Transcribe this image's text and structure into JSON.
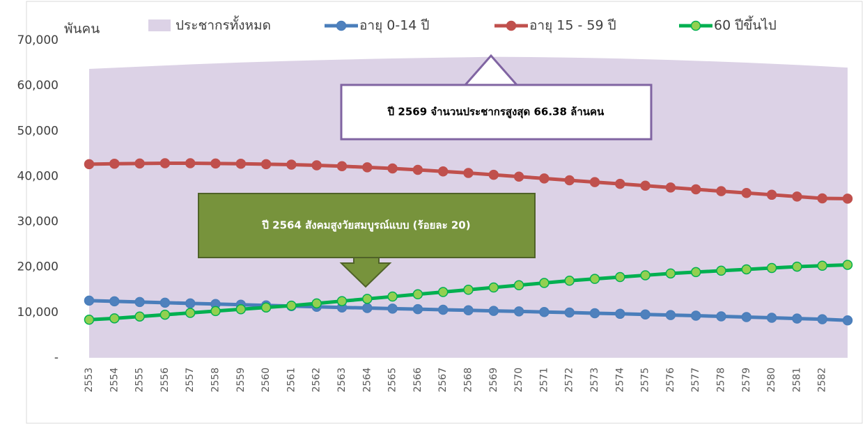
{
  "chart_data": {
    "type": "line",
    "y_unit": "พันคน",
    "categories": [
      "2553",
      "2554",
      "2555",
      "2556",
      "2557",
      "2558",
      "2559",
      "2560",
      "2561",
      "2562",
      "2563",
      "2564",
      "2565",
      "2566",
      "2567",
      "2568",
      "2569",
      "2570",
      "2571",
      "2572",
      "2573",
      "2574",
      "2575",
      "2576",
      "2577",
      "2578",
      "2579",
      "2580",
      "2581",
      "2582",
      null
    ],
    "series": [
      {
        "name": "ประชากรทั้งหมด",
        "type": "area",
        "color": "#dcd2e6",
        "values": [
          63700,
          63950,
          64200,
          64450,
          64700,
          64920,
          65120,
          65300,
          65470,
          65620,
          65760,
          65890,
          66000,
          66100,
          66200,
          66280,
          66380,
          66340,
          66280,
          66200,
          66100,
          65980,
          65840,
          65680,
          65500,
          65300,
          65080,
          64840,
          64580,
          64300,
          64000
        ]
      },
      {
        "name": "อายุ 0-14 ปี",
        "type": "line",
        "color": "#4a7ebb",
        "marker_color": "#4f81bd",
        "values": [
          12600,
          12450,
          12300,
          12150,
          12000,
          11850,
          11700,
          11550,
          11400,
          11250,
          11100,
          10980,
          10850,
          10720,
          10600,
          10480,
          10350,
          10230,
          10100,
          9970,
          9830,
          9700,
          9560,
          9420,
          9280,
          9130,
          8980,
          8820,
          8660,
          8500,
          8250
        ]
      },
      {
        "name": "อายุ 15 - 59 ปี",
        "type": "line",
        "color": "#c0504d",
        "marker_color": "#c0504d",
        "values": [
          42700,
          42800,
          42850,
          42900,
          42900,
          42850,
          42800,
          42700,
          42600,
          42450,
          42250,
          42000,
          41750,
          41450,
          41100,
          40750,
          40350,
          39950,
          39550,
          39150,
          38750,
          38350,
          37950,
          37550,
          37150,
          36750,
          36350,
          35950,
          35550,
          35150,
          35100
        ]
      },
      {
        "name": "60 ปีขึ้นไป",
        "type": "line",
        "color": "#00b050",
        "marker_color": "#92d050",
        "values": [
          8400,
          8700,
          9100,
          9500,
          9900,
          10300,
          10700,
          11100,
          11500,
          12000,
          12500,
          13000,
          13500,
          14000,
          14500,
          15000,
          15500,
          16000,
          16500,
          17000,
          17400,
          17800,
          18200,
          18600,
          18900,
          19200,
          19500,
          19800,
          20100,
          20300,
          20500
        ]
      }
    ],
    "ylim": [
      0,
      70000
    ],
    "yticks": [
      {
        "value": 0,
        "label": "-"
      },
      {
        "value": 10000,
        "label": "10,000"
      },
      {
        "value": 20000,
        "label": "20,000"
      },
      {
        "value": 30000,
        "label": "30,000"
      },
      {
        "value": 40000,
        "label": "40,000"
      },
      {
        "value": 50000,
        "label": "50,000"
      },
      {
        "value": 60000,
        "label": "60,000"
      },
      {
        "value": 70000,
        "label": "70,000"
      }
    ],
    "annotations": [
      "ปี 2569 จำนวนประชากรสูงสุด 66.38 ล้านคน",
      "ปี 2564 สังคมสูงวัยสมบูรณ์แบบ (ร้อยละ 20)"
    ]
  }
}
